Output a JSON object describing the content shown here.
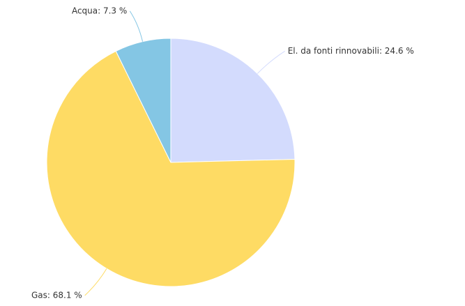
{
  "chart_data": {
    "type": "pie",
    "values": [
      24.6,
      68.1,
      7.3
    ],
    "value_labels": [
      "El. da fonti rinnovabili: 24.6 %",
      "Gas: 68.1 %",
      "Acqua: 7.3 %"
    ],
    "colors": [
      "#d3dbfd",
      "#fedb64",
      "#84c6e4"
    ]
  }
}
